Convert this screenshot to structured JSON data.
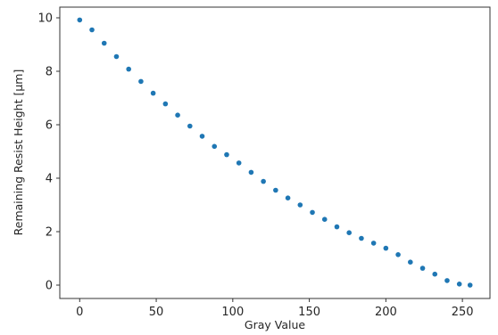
{
  "chart_data": {
    "type": "scatter",
    "title": "",
    "xlabel": "Gray Value",
    "ylabel": "Remaining Resist Height [µm]",
    "xlim": [
      -13,
      268
    ],
    "ylim": [
      -0.5,
      10.4
    ],
    "xticks": [
      0,
      50,
      100,
      150,
      200,
      250
    ],
    "yticks": [
      0,
      2,
      4,
      6,
      8,
      10
    ],
    "grid": false,
    "legend": "none",
    "marker_color": "#1f77b4",
    "series": [
      {
        "x": [
          0,
          8,
          16,
          24,
          32,
          40,
          48,
          56,
          64,
          72,
          80,
          88,
          96,
          104,
          112,
          120,
          128,
          136,
          144,
          152,
          160,
          168,
          176,
          184,
          192,
          200,
          208,
          216,
          224,
          232,
          240,
          248,
          255
        ],
        "y": [
          9.92,
          9.55,
          9.05,
          8.55,
          8.08,
          7.62,
          7.18,
          6.78,
          6.36,
          5.95,
          5.57,
          5.19,
          4.88,
          4.57,
          4.22,
          3.88,
          3.55,
          3.26,
          3.0,
          2.72,
          2.46,
          2.18,
          1.96,
          1.75,
          1.57,
          1.38,
          1.14,
          0.86,
          0.63,
          0.41,
          0.17,
          0.04,
          0.0
        ]
      }
    ]
  }
}
